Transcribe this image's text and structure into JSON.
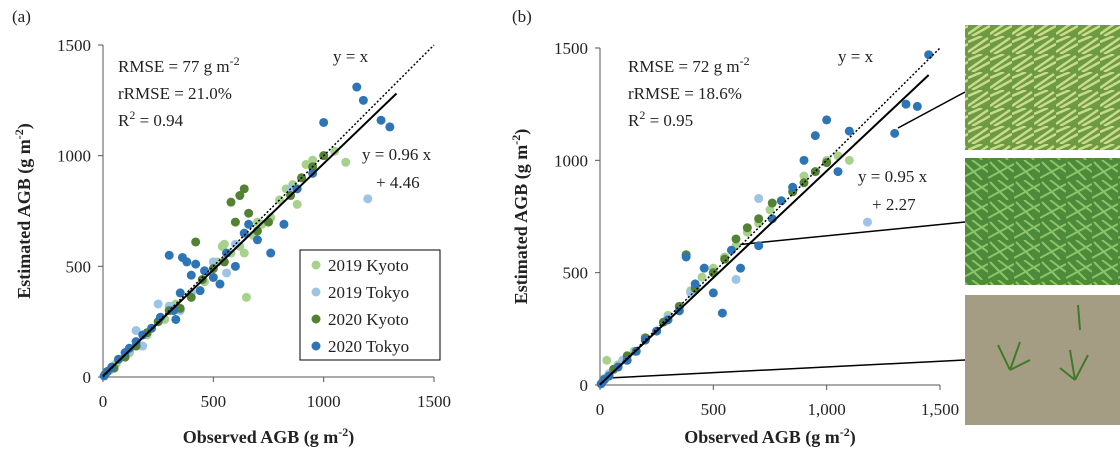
{
  "chart_data": [
    {
      "type": "scatter",
      "panel_label": "(a)",
      "xlabel": {
        "text": "Observed AGB (g m",
        "sup": "-2",
        "rest": ")"
      },
      "ylabel": {
        "text": "Estimated AGB (g m",
        "sup": "-2",
        "rest": ")"
      },
      "xlim": [
        0,
        1500
      ],
      "ylim": [
        0,
        1500
      ],
      "xticks": [
        0,
        500,
        1000,
        1500
      ],
      "yticks": [
        0,
        500,
        1000,
        1500
      ],
      "stats": [
        {
          "text": "RMSE = 77 g m",
          "sup": "-2"
        },
        {
          "text": "rRMSE = 21.0%"
        },
        {
          "text": "R",
          "sup": "2",
          "rest": " = 0.94"
        }
      ],
      "identity_label": "y = x",
      "identity_line": {
        "x": [
          0,
          1500
        ],
        "y": [
          0,
          1500
        ]
      },
      "fit_label": [
        "y = 0.96 x",
        "+ 4.46"
      ],
      "fit_line": {
        "x": [
          0,
          1330
        ],
        "y": [
          4.46,
          1281
        ]
      },
      "legend": true,
      "legend_position": "lower right",
      "series": [
        {
          "name": "2019 Kyoto",
          "color": "#a9d18e",
          "x": [
            20,
            60,
            120,
            200,
            280,
            330,
            400,
            460,
            520,
            550,
            580,
            620,
            650,
            680,
            720,
            760,
            800,
            830,
            860,
            880,
            900,
            920,
            950,
            1000,
            1050,
            1100,
            640,
            700,
            540
          ],
          "values": [
            25,
            60,
            110,
            190,
            260,
            330,
            380,
            430,
            520,
            600,
            560,
            590,
            360,
            640,
            690,
            720,
            800,
            850,
            870,
            780,
            900,
            960,
            980,
            1000,
            1020,
            970,
            560,
            700,
            590
          ]
        },
        {
          "name": "2019 Tokyo",
          "color": "#9dc3e6",
          "x": [
            30,
            100,
            150,
            180,
            250,
            300,
            350,
            400,
            450,
            500,
            560,
            600,
            850,
            1200,
            120
          ],
          "values": [
            30,
            90,
            210,
            140,
            330,
            320,
            300,
            380,
            440,
            520,
            470,
            600,
            850,
            805,
            120
          ]
        },
        {
          "name": "2020 Kyoto",
          "color": "#548235",
          "x": [
            10,
            50,
            100,
            150,
            200,
            250,
            300,
            350,
            400,
            420,
            450,
            500,
            550,
            580,
            600,
            620,
            640,
            660,
            700,
            750,
            850,
            900,
            950,
            1000
          ],
          "values": [
            12,
            40,
            90,
            140,
            200,
            250,
            300,
            310,
            360,
            610,
            440,
            490,
            520,
            790,
            700,
            820,
            850,
            740,
            660,
            700,
            820,
            900,
            950,
            1000
          ]
        },
        {
          "name": "2020 Tokyo",
          "color": "#2e75b6",
          "x": [
            5,
            20,
            40,
            70,
            100,
            120,
            150,
            180,
            220,
            260,
            300,
            320,
            350,
            380,
            400,
            420,
            440,
            460,
            500,
            530,
            560,
            600,
            640,
            660,
            700,
            760,
            820,
            880,
            950,
            1000,
            1150,
            1180,
            1260,
            1300,
            330,
            360
          ],
          "values": [
            5,
            25,
            45,
            80,
            110,
            130,
            160,
            190,
            220,
            270,
            550,
            300,
            380,
            520,
            460,
            510,
            390,
            480,
            450,
            420,
            560,
            500,
            650,
            690,
            620,
            560,
            690,
            850,
            920,
            1150,
            1310,
            1250,
            1160,
            1130,
            260,
            540
          ]
        }
      ]
    },
    {
      "type": "scatter",
      "panel_label": "(b)",
      "xlabel": {
        "text": "Observed AGB (g m",
        "sup": "-2",
        "rest": ")"
      },
      "ylabel": {
        "text": "Estimated AGB (g m",
        "sup": "-2",
        "rest": ")"
      },
      "xlim": [
        0,
        1500
      ],
      "ylim": [
        0,
        1500
      ],
      "xticks": [
        0,
        500,
        {
          "value": 1000,
          "label": "1,000"
        },
        {
          "value": 1500,
          "label": "1,500"
        }
      ],
      "yticks": [
        0,
        500,
        1000,
        1500
      ],
      "stats": [
        {
          "text": "RMSE = 72 g m",
          "sup": "-2"
        },
        {
          "text": "rRMSE = 18.6%"
        },
        {
          "text": "R",
          "sup": "2",
          "rest": " = 0.95"
        }
      ],
      "identity_label": "y = x",
      "identity_line": {
        "x": [
          0,
          1500
        ],
        "y": [
          0,
          1500
        ]
      },
      "fit_label": [
        "y = 0.95 x",
        "+ 2.27"
      ],
      "fit_line": {
        "x": [
          0,
          1450
        ],
        "y": [
          2.27,
          1380
        ]
      },
      "legend": false,
      "series": [
        {
          "color": "#a9d18e",
          "x": [
            20,
            80,
            150,
            200,
            300,
            350,
            400,
            450,
            500,
            550,
            600,
            650,
            700,
            750,
            800,
            850,
            900,
            950,
            1000,
            1050,
            1100,
            30
          ],
          "values": [
            30,
            90,
            150,
            210,
            310,
            350,
            420,
            480,
            520,
            570,
            620,
            680,
            720,
            780,
            820,
            880,
            930,
            950,
            1000,
            1020,
            1000,
            110
          ]
        },
        {
          "color": "#9dc3e6",
          "x": [
            40,
            100,
            200,
            300,
            400,
            500,
            600,
            700,
            1180,
            850
          ],
          "values": [
            50,
            110,
            210,
            300,
            410,
            500,
            470,
            830,
            725,
            860
          ]
        },
        {
          "color": "#548235",
          "x": [
            15,
            60,
            120,
            200,
            280,
            350,
            380,
            420,
            500,
            550,
            600,
            650,
            700,
            760,
            850,
            900,
            950,
            1000
          ],
          "values": [
            20,
            70,
            130,
            210,
            280,
            350,
            580,
            430,
            500,
            560,
            650,
            700,
            740,
            810,
            860,
            900,
            950,
            990
          ]
        },
        {
          "color": "#2e75b6",
          "x": [
            5,
            20,
            40,
            80,
            120,
            160,
            200,
            250,
            300,
            350,
            380,
            420,
            460,
            500,
            540,
            580,
            620,
            700,
            760,
            800,
            850,
            900,
            950,
            1000,
            1100,
            1300,
            1350,
            1400,
            1450,
            1050
          ],
          "values": [
            5,
            25,
            40,
            80,
            110,
            150,
            200,
            240,
            290,
            330,
            570,
            450,
            520,
            410,
            320,
            600,
            520,
            620,
            740,
            820,
            880,
            1000,
            1110,
            1180,
            1130,
            1120,
            1250,
            1240,
            1470,
            950
          ]
        }
      ]
    }
  ]
}
